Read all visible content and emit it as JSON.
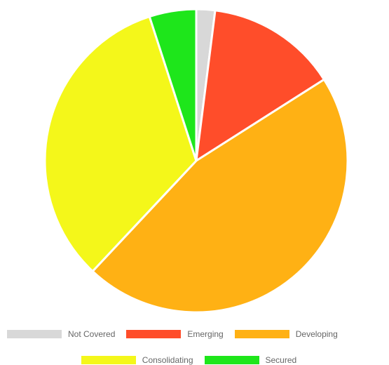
{
  "chart_data": {
    "type": "pie",
    "categories": [
      "Not Covered",
      "Emerging",
      "Developing",
      "Consolidating",
      "Secured"
    ],
    "values": [
      2,
      14,
      46,
      33,
      5
    ],
    "colors": [
      "#d8d8d8",
      "#ff4d2a",
      "#ffb114",
      "#f4f71a",
      "#1ee61b"
    ],
    "legend_position": "bottom",
    "start_angle": "top",
    "slice_border": "white"
  }
}
